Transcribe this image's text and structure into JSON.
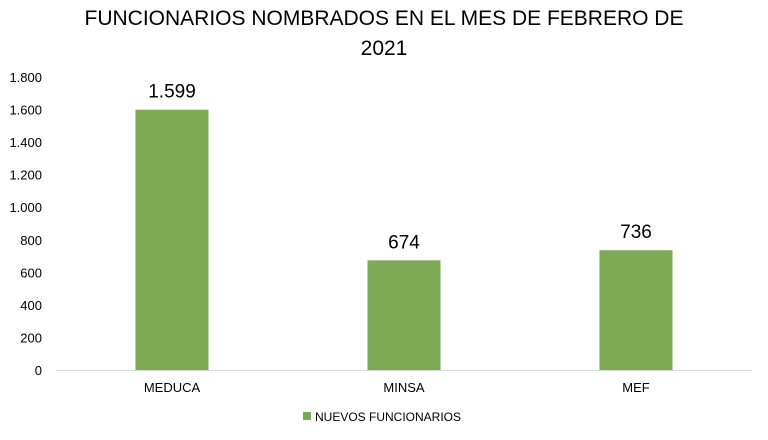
{
  "chart_data": {
    "type": "bar",
    "title_lines": [
      "FUNCIONARIOS NOMBRADOS EN EL MES DE FEBRERO DE",
      "2021"
    ],
    "categories": [
      "MEDUCA",
      "MINSA",
      "MEF"
    ],
    "series": [
      {
        "name": "NUEVOS FUNCIONARIOS",
        "values": [
          1599,
          674,
          736
        ],
        "color": "#7faa55"
      }
    ],
    "data_labels": [
      "1.599",
      "674",
      "736"
    ],
    "y_ticks": [
      {
        "value": 0,
        "label": "0"
      },
      {
        "value": 200,
        "label": "200"
      },
      {
        "value": 400,
        "label": "400"
      },
      {
        "value": 600,
        "label": "600"
      },
      {
        "value": 800,
        "label": "800"
      },
      {
        "value": 1000,
        "label": "1.000"
      },
      {
        "value": 1200,
        "label": "1.200"
      },
      {
        "value": 1400,
        "label": "1.400"
      },
      {
        "value": 1600,
        "label": "1.600"
      },
      {
        "value": 1800,
        "label": "1.800"
      }
    ],
    "ylim": [
      0,
      1800
    ],
    "xlabel": "",
    "ylabel": "",
    "grid": false,
    "legend": "bottom"
  }
}
